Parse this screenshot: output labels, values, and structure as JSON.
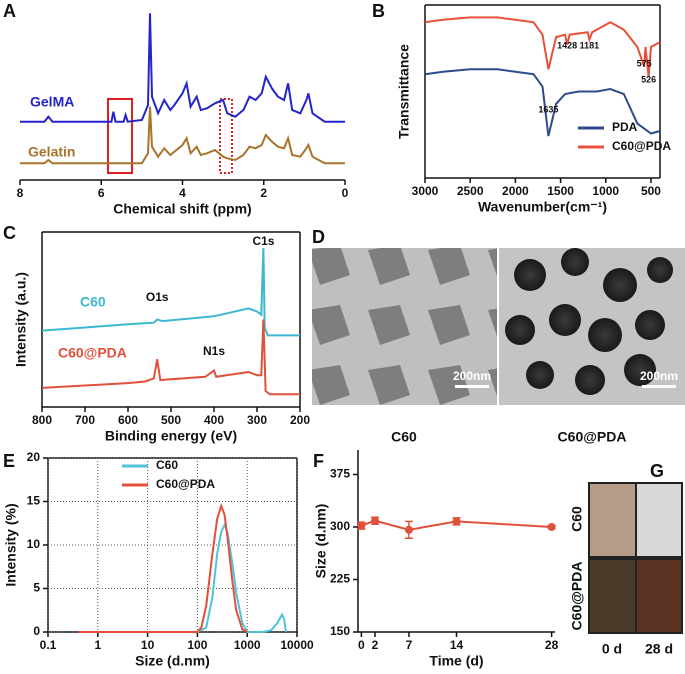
{
  "chart_data": [
    {
      "panel": "A",
      "type": "line",
      "xlabel": "Chemical shift (ppm)",
      "xlim": [
        8,
        0
      ],
      "xticks": [
        8,
        6,
        4,
        2,
        0
      ],
      "ylim": [
        0,
        105
      ],
      "legend": "inline",
      "series": [
        {
          "name": "GelMA",
          "color": "#2424cc",
          "x": [
            8,
            7.4,
            7.3,
            7.2,
            6,
            5.75,
            5.7,
            5.65,
            5.45,
            5.4,
            5.35,
            5.0,
            4.85,
            4.8,
            4.75,
            4.6,
            4.45,
            4.3,
            4.2,
            4.0,
            3.9,
            3.8,
            3.65,
            3.55,
            3.4,
            3.2,
            3.0,
            2.9,
            2.7,
            2.5,
            2.35,
            2.2,
            2.05,
            1.95,
            1.8,
            1.65,
            1.5,
            1.4,
            1.3,
            1.1,
            0.95,
            0.9,
            0.8,
            0.5,
            0
          ],
          "values": [
            35,
            35,
            38,
            35,
            35,
            35,
            41,
            35,
            35,
            39,
            35,
            36,
            45,
            100,
            50,
            40,
            48,
            42,
            45,
            52,
            58,
            44,
            50,
            42,
            43,
            46,
            48,
            40,
            38,
            42,
            50,
            48,
            52,
            62,
            55,
            50,
            48,
            58,
            42,
            40,
            48,
            52,
            40,
            35,
            35
          ]
        },
        {
          "name": "Gelatin",
          "color": "#a8742c",
          "x": [
            8,
            7.4,
            7.3,
            7.2,
            6,
            5.75,
            5.7,
            5.65,
            5.45,
            5.4,
            5.35,
            5.0,
            4.85,
            4.8,
            4.75,
            4.6,
            4.45,
            4.3,
            4.2,
            4.0,
            3.9,
            3.8,
            3.65,
            3.55,
            3.4,
            3.2,
            3.0,
            2.9,
            2.7,
            2.5,
            2.35,
            2.2,
            2.05,
            1.95,
            1.8,
            1.65,
            1.5,
            1.4,
            1.3,
            1.1,
            0.95,
            0.9,
            0.8,
            0.5,
            0
          ],
          "values": [
            10,
            10,
            12,
            10,
            10,
            10,
            10,
            10,
            10,
            10,
            10,
            10,
            16,
            44,
            20,
            14,
            19,
            15,
            17,
            21,
            25,
            16,
            20,
            15,
            16,
            18,
            14,
            13,
            12,
            15,
            20,
            19,
            21,
            27,
            23,
            20,
            19,
            25,
            15,
            14,
            19,
            21,
            14,
            10,
            10
          ]
        }
      ]
    },
    {
      "panel": "B",
      "type": "line",
      "xlabel": "Wavenumber(cm⁻¹)",
      "ylabel": "Transmittance",
      "xlim": [
        3000,
        400
      ],
      "xticks": [
        3000,
        2500,
        2000,
        1500,
        1000,
        500
      ],
      "ylim": [
        30,
        100
      ],
      "legend": "lower right",
      "annotations": [
        1635,
        1428,
        1181,
        575,
        526
      ],
      "series": [
        {
          "name": "PDA",
          "color": "#2f4b8c",
          "x": [
            3000,
            2800,
            2500,
            2200,
            2000,
            1800,
            1700,
            1635,
            1550,
            1450,
            1300,
            1100,
            950,
            800,
            650,
            500,
            400
          ],
          "values": [
            72,
            73,
            74,
            74,
            73,
            72,
            67,
            47,
            60,
            64,
            65,
            65,
            66,
            64,
            52,
            48,
            49
          ]
        },
        {
          "name": "C60@PDA",
          "color": "#e8503a",
          "x": [
            3000,
            2800,
            2500,
            2200,
            2000,
            1800,
            1700,
            1635,
            1550,
            1450,
            1428,
            1400,
            1200,
            1181,
            1150,
            950,
            800,
            650,
            575,
            560,
            526,
            500,
            400
          ],
          "values": [
            93,
            94,
            95,
            95,
            94,
            93,
            88,
            74,
            87,
            88,
            84,
            88,
            89,
            86,
            89,
            93,
            90,
            83,
            75,
            83,
            71,
            83,
            85
          ]
        }
      ]
    },
    {
      "panel": "C",
      "type": "line",
      "xlabel": "Binding energy (eV)",
      "ylabel": "Intensity (a.u.)",
      "xlim": [
        800,
        200
      ],
      "xticks": [
        800,
        700,
        600,
        500,
        400,
        300,
        200
      ],
      "ylim": [
        0,
        110
      ],
      "legend": "inline",
      "annotations": [
        {
          "text": "C1s",
          "x": 285
        },
        {
          "text": "O1s",
          "x": 532
        },
        {
          "text": "N1s",
          "x": 400
        }
      ],
      "series": [
        {
          "name": "C60",
          "color": "#3bb8d0",
          "x": [
            800,
            700,
            600,
            540,
            532,
            520,
            400,
            320,
            300,
            290,
            285,
            282,
            275,
            200
          ],
          "values": [
            48,
            50,
            52,
            53,
            55,
            54,
            57,
            62,
            60,
            58,
            100,
            50,
            45,
            45
          ]
        },
        {
          "name": "C60@PDA",
          "color": "#e0503a",
          "x": [
            800,
            600,
            560,
            540,
            532,
            525,
            420,
            400,
            395,
            320,
            300,
            290,
            285,
            280,
            270,
            200
          ],
          "values": [
            12,
            15,
            16,
            18,
            30,
            17,
            19,
            23,
            19,
            22,
            20,
            20,
            55,
            10,
            8,
            8
          ]
        }
      ]
    },
    {
      "panel": "E",
      "type": "line",
      "xlabel": "Size (d.nm)",
      "ylabel": "Intensity (%)",
      "xscale": "log",
      "grid": true,
      "legend": "upper center",
      "xlim": [
        0.1,
        10000
      ],
      "xticks": [
        0.1,
        1,
        10,
        100,
        1000,
        10000
      ],
      "ylim": [
        0,
        20
      ],
      "yticks": [
        0,
        5,
        10,
        15,
        20
      ],
      "series": [
        {
          "name": "C60",
          "color": "#4fc3d9",
          "x": [
            0.4,
            100,
            150,
            200,
            250,
            300,
            350,
            400,
            500,
            600,
            800,
            1000,
            2000,
            3000,
            4000,
            5000,
            5500,
            6000
          ],
          "values": [
            0,
            0,
            0.5,
            4,
            9,
            11.5,
            12.3,
            11.5,
            8,
            4.5,
            1,
            0,
            0,
            0.2,
            1,
            2,
            1.5,
            0
          ]
        },
        {
          "name": "C60@PDA",
          "color": "#e0503a",
          "x": [
            0.4,
            100,
            120,
            150,
            200,
            250,
            300,
            350,
            400,
            500,
            600,
            800,
            1000
          ],
          "values": [
            0,
            0,
            0.5,
            3,
            9,
            13,
            14.5,
            13.5,
            11,
            6,
            2.5,
            0.3,
            0
          ]
        }
      ]
    },
    {
      "panel": "F",
      "type": "errorline",
      "xlabel": "Time (d)",
      "ylabel": "Size (d.nm)",
      "color": "#e0503a",
      "xlim": [
        -0.5,
        28.5
      ],
      "xticks": [
        0,
        2,
        7,
        14,
        28
      ],
      "ylim": [
        150,
        410
      ],
      "yticks": [
        150,
        225,
        300,
        375
      ],
      "x": [
        0,
        2,
        7,
        14,
        28
      ],
      "values": [
        302,
        309,
        296,
        308,
        300
      ],
      "errors": [
        5,
        5,
        12,
        5,
        2
      ]
    }
  ],
  "images": {
    "tem": {
      "panel": "D",
      "items": [
        {
          "caption": "C60",
          "scale_bar": "200nm"
        },
        {
          "caption": "C60@PDA",
          "scale_bar": "200nm"
        }
      ]
    },
    "photos": {
      "panel": "G",
      "rows": [
        "C60",
        "C60@PDA"
      ],
      "columns": [
        "0 d",
        "28 d"
      ]
    }
  }
}
